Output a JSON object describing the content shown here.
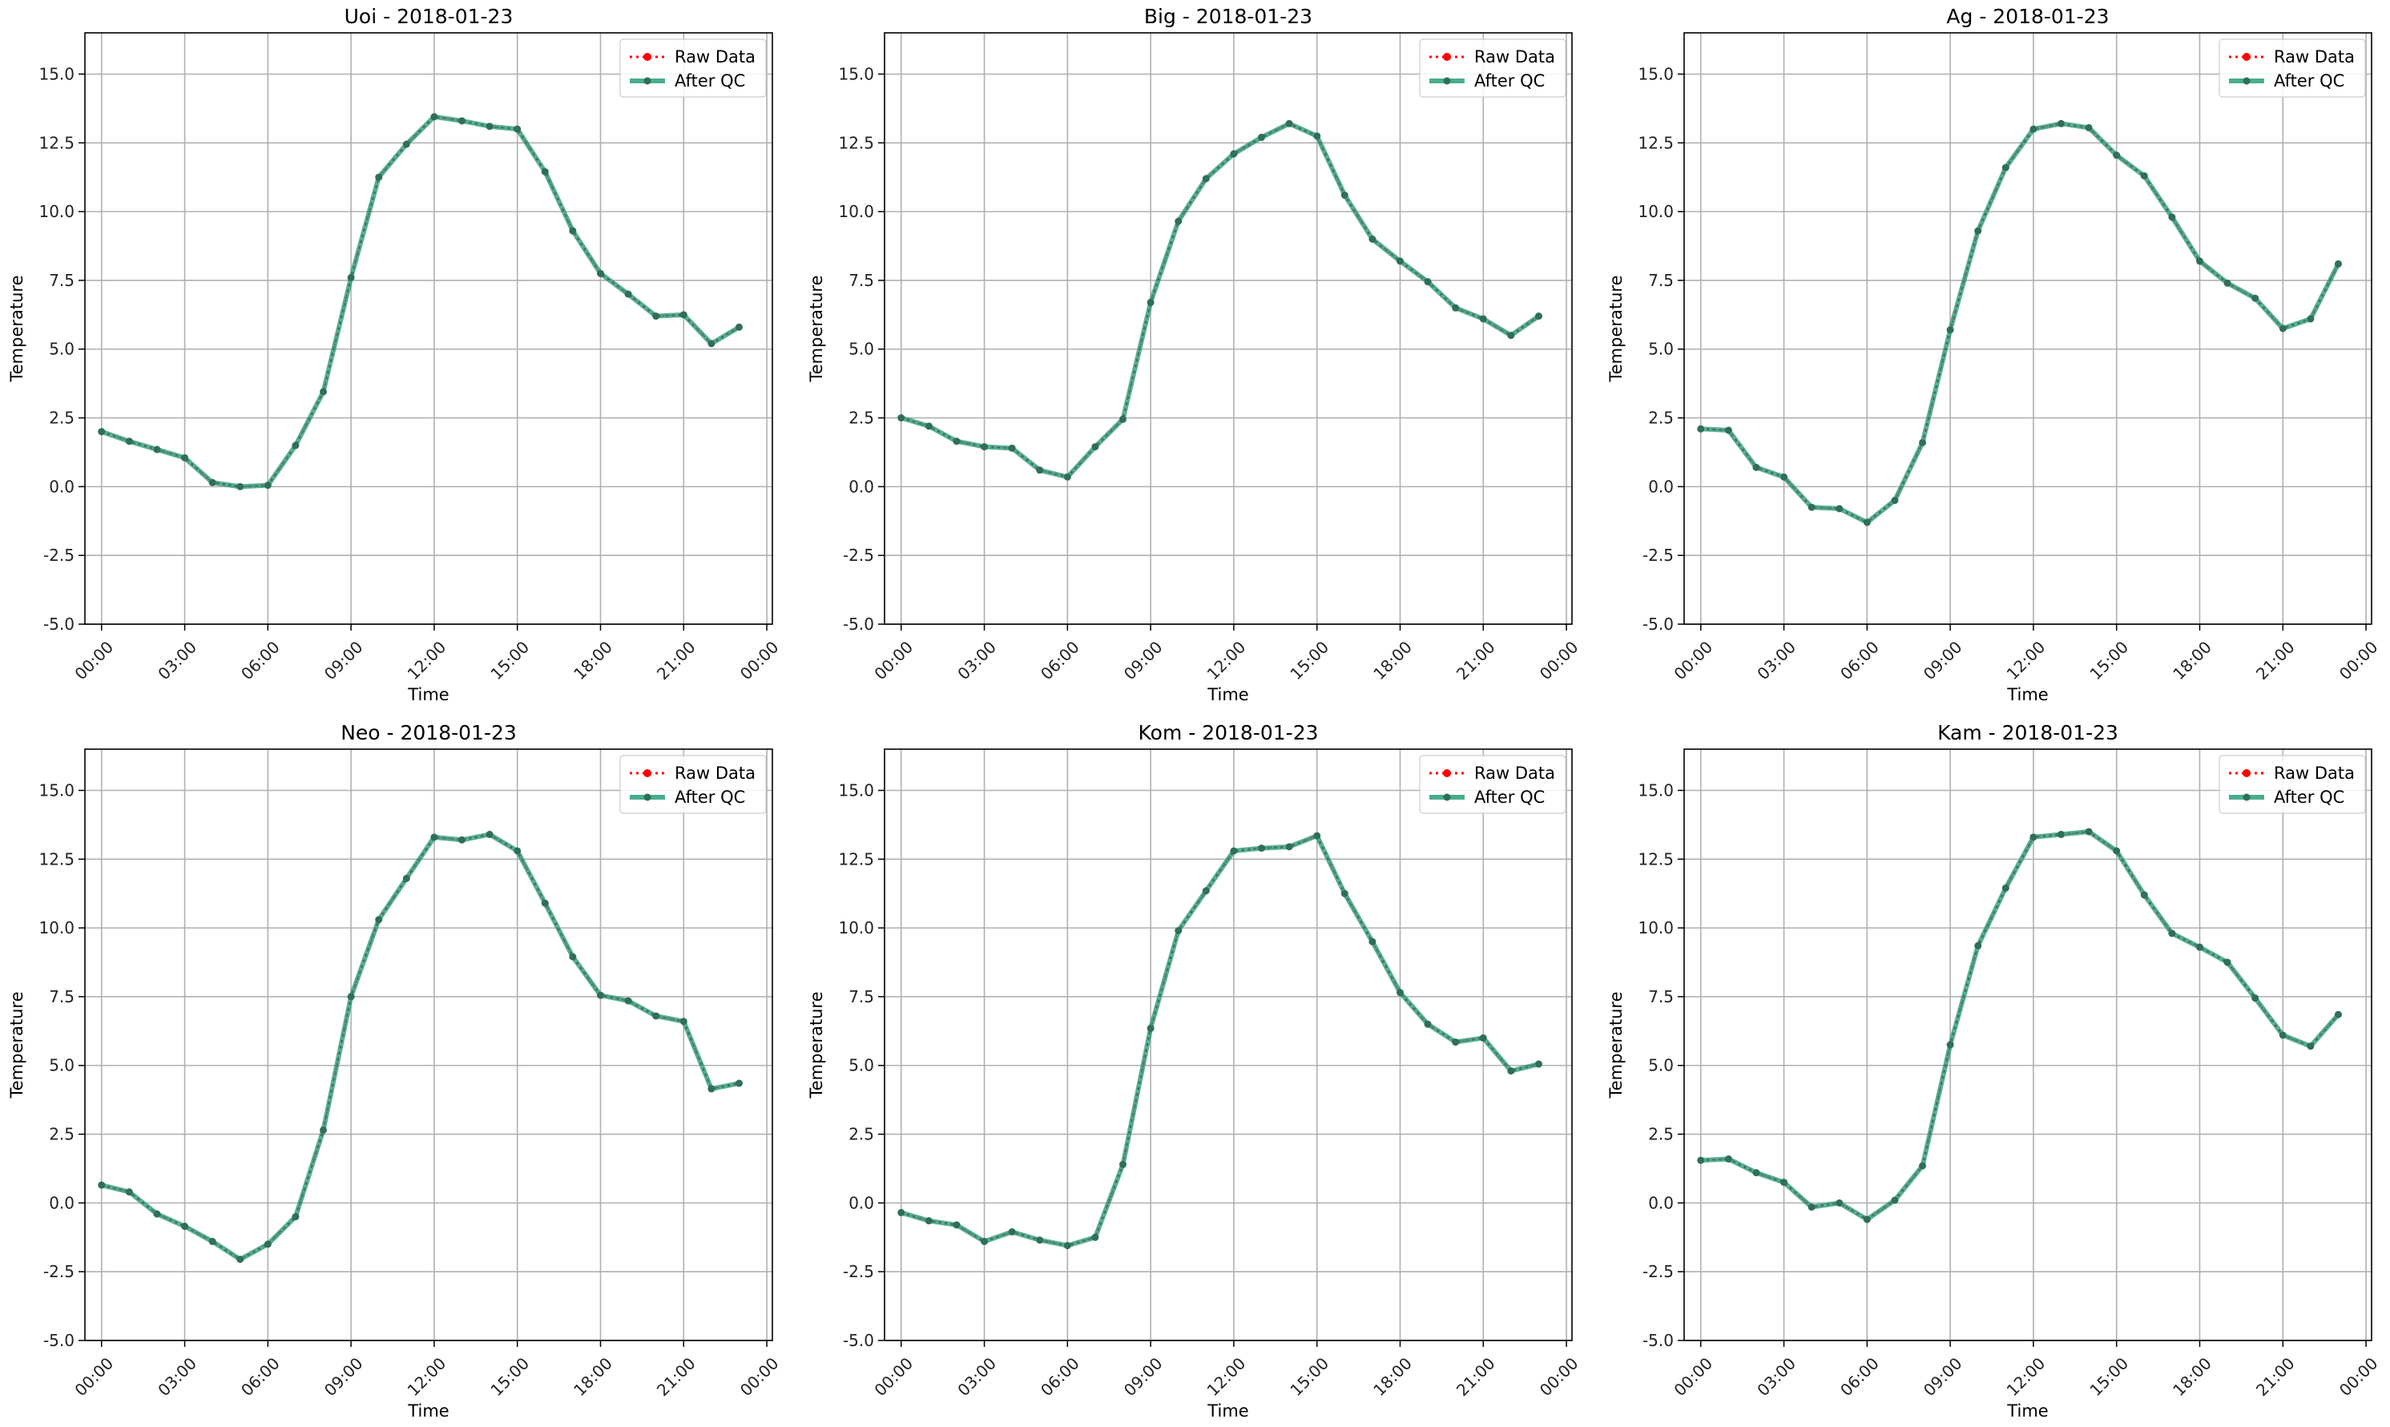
{
  "figure": {
    "x_tick_labels": [
      "00:00",
      "03:00",
      "06:00",
      "09:00",
      "12:00",
      "15:00",
      "18:00",
      "21:00",
      "00:00"
    ],
    "y_tick_labels": [
      "-5.0",
      "-2.5",
      "0.0",
      "2.5",
      "5.0",
      "7.5",
      "10.0",
      "12.5",
      "15.0"
    ],
    "legend": {
      "raw": "Raw Data",
      "qc": "After QC"
    },
    "colors": {
      "raw": "#ff0000",
      "qc": "#2a9d7c",
      "marker": "#2f6f57",
      "grid": "#b0b0b0"
    }
  },
  "chart_data": [
    {
      "type": "line",
      "title": "Uoi - 2018-01-23",
      "xlabel": "Time",
      "ylabel": "Temperature",
      "x_hours": [
        0,
        1,
        2,
        3,
        4,
        5,
        6,
        7,
        8,
        9,
        10,
        11,
        12,
        13,
        14,
        15,
        16,
        17,
        18,
        19,
        20,
        21,
        22,
        23
      ],
      "ylim": [
        -5,
        16.5
      ],
      "xlim_hours": [
        -0.6,
        24.2
      ],
      "grid": true,
      "legend_position": "top-right",
      "series": [
        {
          "name": "Raw Data",
          "values": [
            2.0,
            1.65,
            1.35,
            1.05,
            0.15,
            0.0,
            0.05,
            1.5,
            3.45,
            7.6,
            11.25,
            12.45,
            13.45,
            13.3,
            13.1,
            13.0,
            11.45,
            9.3,
            7.75,
            7.0,
            6.2,
            6.25,
            5.2,
            5.8
          ]
        },
        {
          "name": "After QC",
          "values": [
            2.0,
            1.65,
            1.35,
            1.05,
            0.15,
            0.0,
            0.05,
            1.5,
            3.45,
            7.6,
            11.25,
            12.45,
            13.45,
            13.3,
            13.1,
            13.0,
            11.45,
            9.3,
            7.75,
            7.0,
            6.2,
            6.25,
            5.2,
            5.8
          ]
        }
      ]
    },
    {
      "type": "line",
      "title": "Big - 2018-01-23",
      "xlabel": "Time",
      "ylabel": "Temperature",
      "x_hours": [
        0,
        1,
        2,
        3,
        4,
        5,
        6,
        7,
        8,
        9,
        10,
        11,
        12,
        13,
        14,
        15,
        16,
        17,
        18,
        19,
        20,
        21,
        22,
        23
      ],
      "ylim": [
        -5,
        16.5
      ],
      "xlim_hours": [
        -0.6,
        24.2
      ],
      "grid": true,
      "legend_position": "top-right",
      "series": [
        {
          "name": "Raw Data",
          "values": [
            2.5,
            2.2,
            1.65,
            1.45,
            1.4,
            0.6,
            0.35,
            1.45,
            2.45,
            6.7,
            9.65,
            11.2,
            12.1,
            12.7,
            13.2,
            12.75,
            10.6,
            9.0,
            8.2,
            7.45,
            6.5,
            6.1,
            5.5,
            6.2
          ]
        },
        {
          "name": "After QC",
          "values": [
            2.5,
            2.2,
            1.65,
            1.45,
            1.4,
            0.6,
            0.35,
            1.45,
            2.45,
            6.7,
            9.65,
            11.2,
            12.1,
            12.7,
            13.2,
            12.75,
            10.6,
            9.0,
            8.2,
            7.45,
            6.5,
            6.1,
            5.5,
            6.2
          ]
        }
      ]
    },
    {
      "type": "line",
      "title": "Ag - 2018-01-23",
      "xlabel": "Time",
      "ylabel": "Temperature",
      "x_hours": [
        0,
        1,
        2,
        3,
        4,
        5,
        6,
        7,
        8,
        9,
        10,
        11,
        12,
        13,
        14,
        15,
        16,
        17,
        18,
        19,
        20,
        21,
        22,
        23
      ],
      "ylim": [
        -5,
        16.5
      ],
      "xlim_hours": [
        -0.6,
        24.2
      ],
      "grid": true,
      "legend_position": "top-right",
      "series": [
        {
          "name": "Raw Data",
          "values": [
            2.1,
            2.05,
            0.7,
            0.35,
            -0.75,
            -0.8,
            -1.3,
            -0.5,
            1.6,
            5.7,
            9.3,
            11.6,
            13.0,
            13.2,
            13.05,
            12.05,
            11.3,
            9.8,
            8.2,
            7.4,
            6.85,
            5.75,
            6.1,
            8.1
          ]
        },
        {
          "name": "After QC",
          "values": [
            2.1,
            2.05,
            0.7,
            0.35,
            -0.75,
            -0.8,
            -1.3,
            -0.5,
            1.6,
            5.7,
            9.3,
            11.6,
            13.0,
            13.2,
            13.05,
            12.05,
            11.3,
            9.8,
            8.2,
            7.4,
            6.85,
            5.75,
            6.1,
            8.1
          ]
        }
      ]
    },
    {
      "type": "line",
      "title": "Neo - 2018-01-23",
      "xlabel": "Time",
      "ylabel": "Temperature",
      "x_hours": [
        0,
        1,
        2,
        3,
        4,
        5,
        6,
        7,
        8,
        9,
        10,
        11,
        12,
        13,
        14,
        15,
        16,
        17,
        18,
        19,
        20,
        21,
        22,
        23
      ],
      "ylim": [
        -5,
        16.5
      ],
      "xlim_hours": [
        -0.6,
        24.2
      ],
      "grid": true,
      "legend_position": "top-right",
      "series": [
        {
          "name": "Raw Data",
          "values": [
            0.65,
            0.4,
            -0.4,
            -0.85,
            -1.4,
            -2.05,
            -1.5,
            -0.5,
            2.65,
            7.5,
            10.3,
            11.8,
            13.3,
            13.2,
            13.4,
            12.8,
            10.9,
            8.95,
            7.55,
            7.35,
            6.8,
            6.6,
            4.15,
            4.35
          ]
        },
        {
          "name": "After QC",
          "values": [
            0.65,
            0.4,
            -0.4,
            -0.85,
            -1.4,
            -2.05,
            -1.5,
            -0.5,
            2.65,
            7.5,
            10.3,
            11.8,
            13.3,
            13.2,
            13.4,
            12.8,
            10.9,
            8.95,
            7.55,
            7.35,
            6.8,
            6.6,
            4.15,
            4.35
          ]
        }
      ]
    },
    {
      "type": "line",
      "title": "Kom - 2018-01-23",
      "xlabel": "Time",
      "ylabel": "Temperature",
      "x_hours": [
        0,
        1,
        2,
        3,
        4,
        5,
        6,
        7,
        8,
        9,
        10,
        11,
        12,
        13,
        14,
        15,
        16,
        17,
        18,
        19,
        20,
        21,
        22,
        23
      ],
      "ylim": [
        -5,
        16.5
      ],
      "xlim_hours": [
        -0.6,
        24.2
      ],
      "grid": true,
      "legend_position": "top-right",
      "series": [
        {
          "name": "Raw Data",
          "values": [
            -0.35,
            -0.65,
            -0.8,
            -1.4,
            -1.05,
            -1.35,
            -1.55,
            -1.25,
            1.4,
            6.35,
            9.9,
            11.35,
            12.8,
            12.9,
            12.95,
            13.35,
            11.25,
            9.5,
            7.65,
            6.5,
            5.85,
            6.0,
            4.8,
            5.05
          ]
        },
        {
          "name": "After QC",
          "values": [
            -0.35,
            -0.65,
            -0.8,
            -1.4,
            -1.05,
            -1.35,
            -1.55,
            -1.25,
            1.4,
            6.35,
            9.9,
            11.35,
            12.8,
            12.9,
            12.95,
            13.35,
            11.25,
            9.5,
            7.65,
            6.5,
            5.85,
            6.0,
            4.8,
            5.05
          ]
        }
      ]
    },
    {
      "type": "line",
      "title": "Kam - 2018-01-23",
      "xlabel": "Time",
      "ylabel": "Temperature",
      "x_hours": [
        0,
        1,
        2,
        3,
        4,
        5,
        6,
        7,
        8,
        9,
        10,
        11,
        12,
        13,
        14,
        15,
        16,
        17,
        18,
        19,
        20,
        21,
        22,
        23
      ],
      "ylim": [
        -5,
        16.5
      ],
      "xlim_hours": [
        -0.6,
        24.2
      ],
      "grid": true,
      "legend_position": "top-right",
      "series": [
        {
          "name": "Raw Data",
          "values": [
            1.55,
            1.6,
            1.1,
            0.75,
            -0.15,
            0.0,
            -0.6,
            0.1,
            1.35,
            5.75,
            9.35,
            11.45,
            13.3,
            13.4,
            13.5,
            12.8,
            11.2,
            9.8,
            9.3,
            8.75,
            7.45,
            6.1,
            5.7,
            6.85
          ]
        },
        {
          "name": "After QC",
          "values": [
            1.55,
            1.6,
            1.1,
            0.75,
            -0.15,
            0.0,
            -0.6,
            0.1,
            1.35,
            5.75,
            9.35,
            11.45,
            13.3,
            13.4,
            13.5,
            12.8,
            11.2,
            9.8,
            9.3,
            8.75,
            7.45,
            6.1,
            5.7,
            6.85
          ]
        }
      ]
    }
  ]
}
